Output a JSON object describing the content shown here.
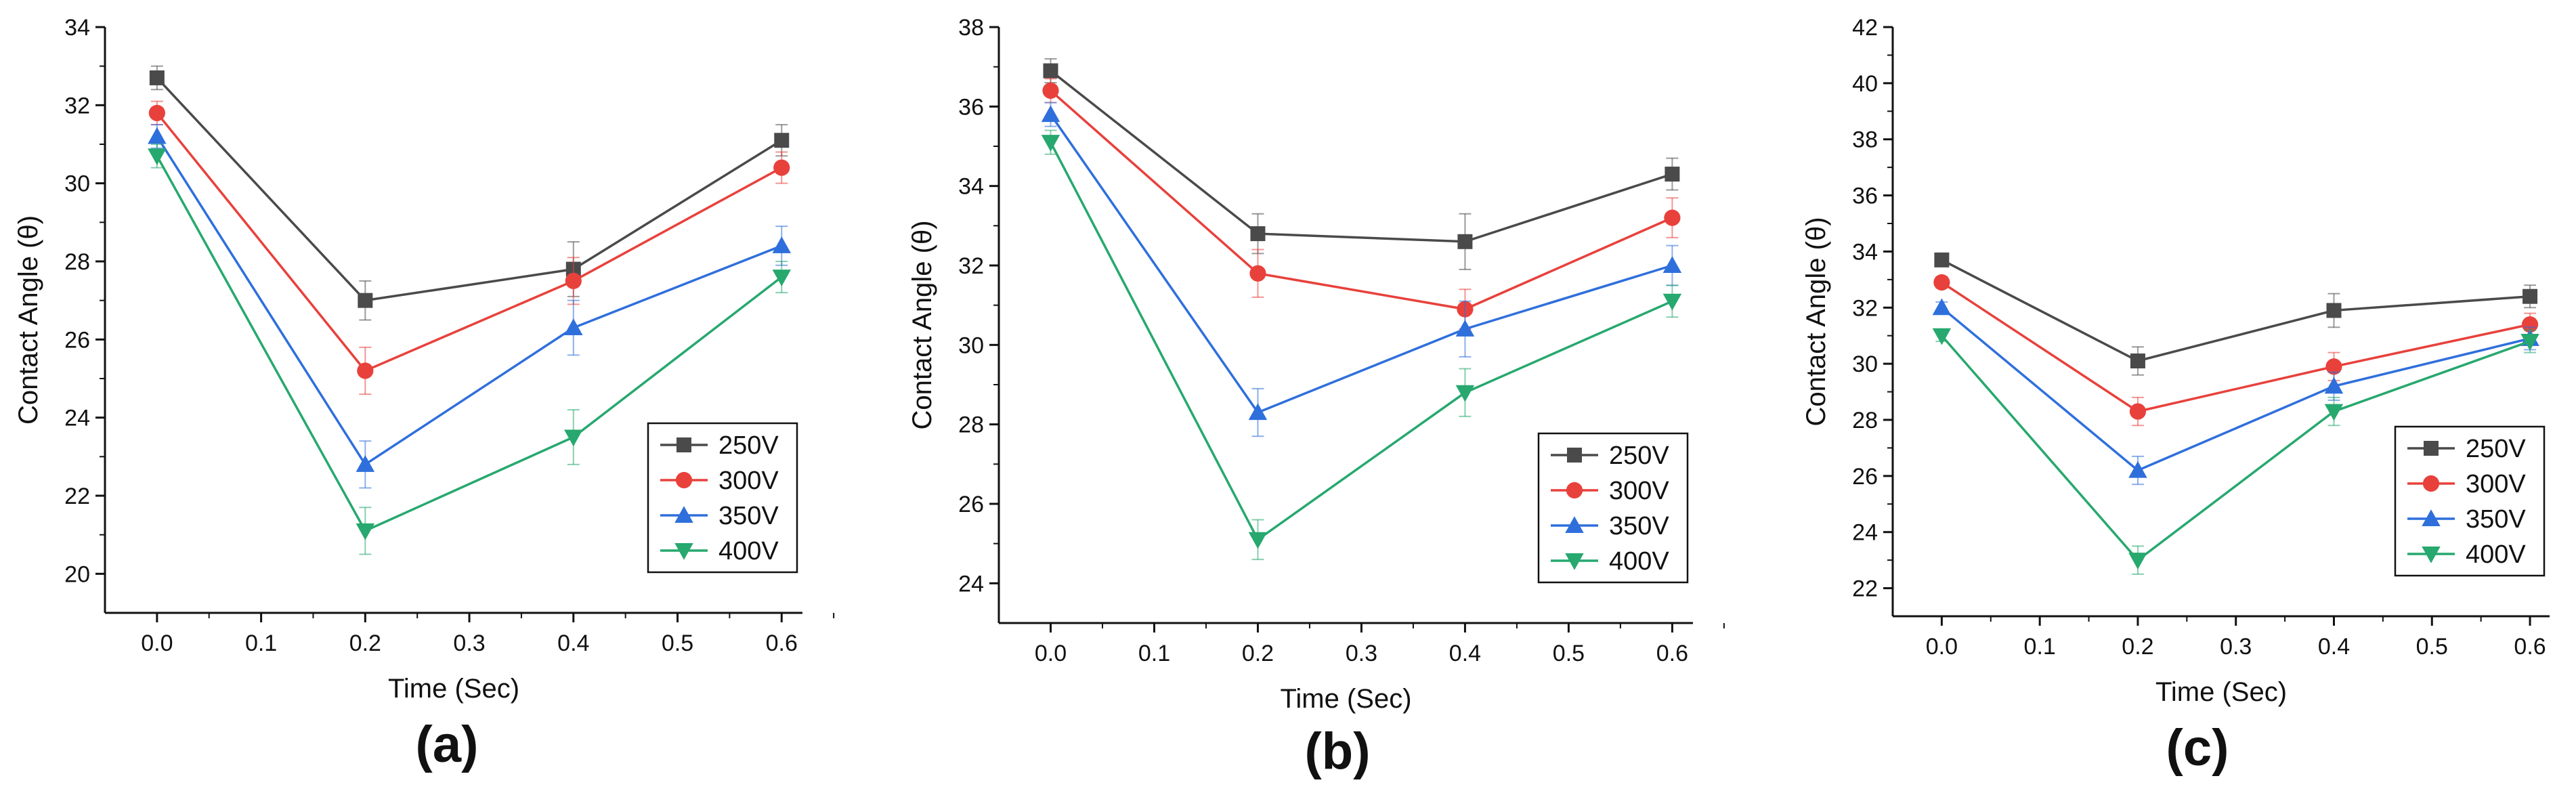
{
  "figure": {
    "panel_labels": [
      "(a)",
      "(b)",
      "(c)"
    ]
  },
  "series_style": [
    {
      "name": "250V",
      "color": "#4a4a4a",
      "marker": "square"
    },
    {
      "name": "300V",
      "color": "#e8413c",
      "marker": "circle"
    },
    {
      "name": "350V",
      "color": "#2f6fdc",
      "marker": "triangle-up"
    },
    {
      "name": "400V",
      "color": "#27a86e",
      "marker": "triangle-down"
    }
  ],
  "chart_data": [
    {
      "type": "line",
      "panel": "(a)",
      "xlabel": "Time (Sec)",
      "ylabel": "Contact Angle (θ)",
      "xlim": [
        -0.05,
        0.62
      ],
      "ylim": [
        19,
        34
      ],
      "xticks": [
        0.0,
        0.1,
        0.2,
        0.3,
        0.4,
        0.5,
        0.6
      ],
      "xtick_labels": [
        "0.0",
        "0.1",
        "0.2",
        "0.3",
        "0.4",
        "0.5",
        "0.6"
      ],
      "yticks": [
        20,
        22,
        24,
        26,
        28,
        30,
        32,
        34
      ],
      "ytick_labels": [
        "20",
        "22",
        "24",
        "26",
        "28",
        "30",
        "32",
        "34"
      ],
      "legend_position": "bottom-right",
      "x": [
        0.0,
        0.2,
        0.4,
        0.6
      ],
      "series": [
        {
          "name": "250V",
          "values": [
            32.7,
            27.0,
            27.8,
            31.1
          ],
          "errors": [
            0.3,
            0.5,
            0.7,
            0.4
          ]
        },
        {
          "name": "300V",
          "values": [
            31.8,
            25.2,
            27.5,
            30.4
          ],
          "errors": [
            0.3,
            0.6,
            0.6,
            0.4
          ]
        },
        {
          "name": "350V",
          "values": [
            31.2,
            22.8,
            26.3,
            28.4
          ],
          "errors": [
            0.3,
            0.6,
            0.7,
            0.5
          ]
        },
        {
          "name": "400V",
          "values": [
            30.7,
            21.1,
            23.5,
            27.6
          ],
          "errors": [
            0.3,
            0.6,
            0.7,
            0.4
          ]
        }
      ]
    },
    {
      "type": "line",
      "panel": "(b)",
      "xlabel": "Time (Sec)",
      "ylabel": "Contact Angle (θ)",
      "xlim": [
        -0.05,
        0.62
      ],
      "ylim": [
        23,
        38
      ],
      "xticks": [
        0.0,
        0.1,
        0.2,
        0.3,
        0.4,
        0.5,
        0.6
      ],
      "xtick_labels": [
        "0.0",
        "0.1",
        "0.2",
        "0.3",
        "0.4",
        "0.5",
        "0.6"
      ],
      "yticks": [
        24,
        26,
        28,
        30,
        32,
        34,
        36,
        38
      ],
      "ytick_labels": [
        "24",
        "26",
        "28",
        "30",
        "32",
        "34",
        "36",
        "38"
      ],
      "legend_position": "bottom-right",
      "x": [
        0.0,
        0.2,
        0.4,
        0.6
      ],
      "series": [
        {
          "name": "250V",
          "values": [
            36.9,
            32.8,
            32.6,
            34.3
          ],
          "errors": [
            0.3,
            0.5,
            0.7,
            0.4
          ]
        },
        {
          "name": "300V",
          "values": [
            36.4,
            31.8,
            30.9,
            33.2
          ],
          "errors": [
            0.3,
            0.6,
            0.5,
            0.5
          ]
        },
        {
          "name": "350V",
          "values": [
            35.8,
            28.3,
            30.4,
            32.0
          ],
          "errors": [
            0.3,
            0.6,
            0.7,
            0.5
          ]
        },
        {
          "name": "400V",
          "values": [
            35.1,
            25.1,
            28.8,
            31.1
          ],
          "errors": [
            0.3,
            0.5,
            0.6,
            0.4
          ]
        }
      ]
    },
    {
      "type": "line",
      "panel": "(c)",
      "xlabel": "Time (Sec)",
      "ylabel": "Contact Angle (θ)",
      "xlim": [
        -0.05,
        0.62
      ],
      "ylim": [
        21,
        42
      ],
      "xticks": [
        0.0,
        0.1,
        0.2,
        0.3,
        0.4,
        0.5,
        0.6
      ],
      "xtick_labels": [
        "0.0",
        "0.1",
        "0.2",
        "0.3",
        "0.4",
        "0.5",
        "0.6"
      ],
      "yticks": [
        22,
        24,
        26,
        28,
        30,
        32,
        34,
        36,
        38,
        40,
        42
      ],
      "ytick_labels": [
        "22",
        "24",
        "26",
        "28",
        "30",
        "32",
        "34",
        "36",
        "38",
        "40",
        "42"
      ],
      "legend_position": "bottom-right",
      "x": [
        0.0,
        0.2,
        0.4,
        0.6
      ],
      "series": [
        {
          "name": "250V",
          "values": [
            33.7,
            30.1,
            31.9,
            32.4
          ],
          "errors": [
            0.2,
            0.5,
            0.6,
            0.4
          ]
        },
        {
          "name": "300V",
          "values": [
            32.9,
            28.3,
            29.9,
            31.4
          ],
          "errors": [
            0.2,
            0.5,
            0.5,
            0.4
          ]
        },
        {
          "name": "350V",
          "values": [
            32.0,
            26.2,
            29.2,
            30.9
          ],
          "errors": [
            0.2,
            0.5,
            0.5,
            0.4
          ]
        },
        {
          "name": "400V",
          "values": [
            31.0,
            23.0,
            28.3,
            30.8
          ],
          "errors": [
            0.2,
            0.5,
            0.5,
            0.4
          ]
        }
      ]
    }
  ]
}
